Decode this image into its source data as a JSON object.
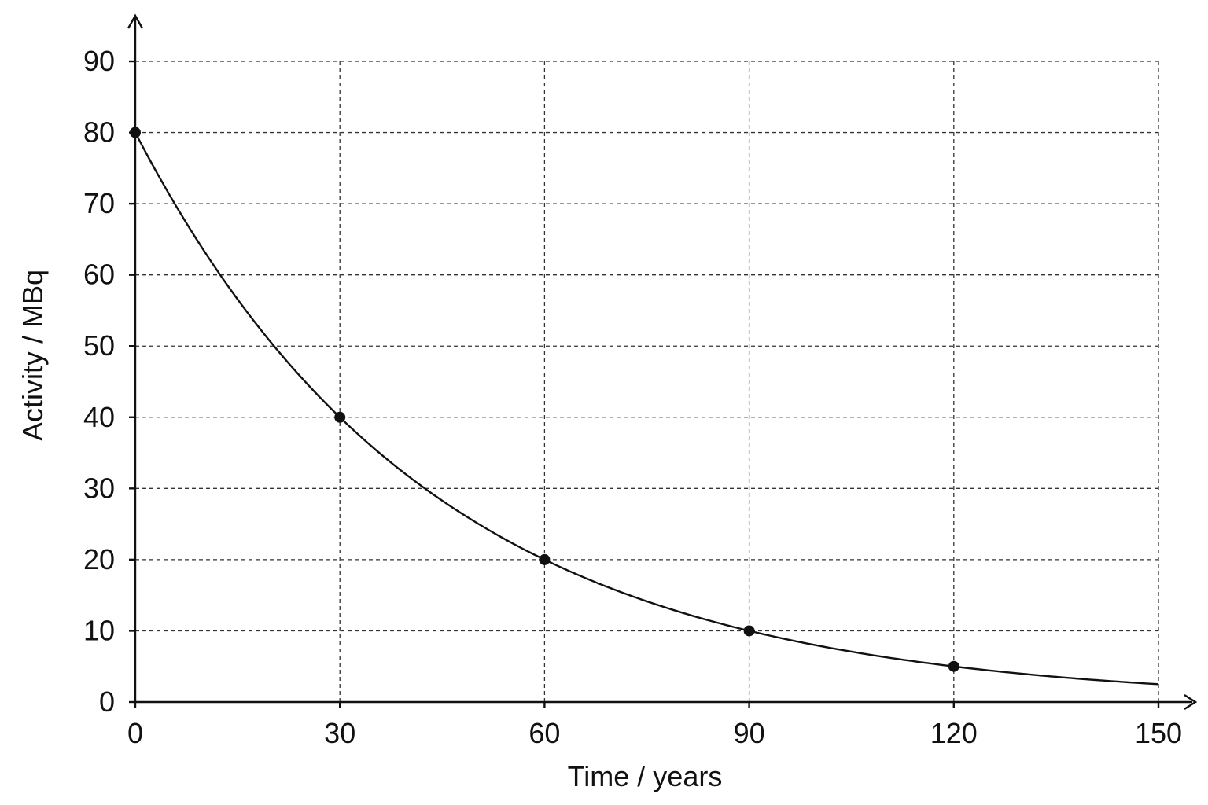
{
  "chart_data": {
    "type": "line",
    "title": "",
    "xlabel": "Time / years",
    "ylabel": "Activity / MBq",
    "xlim": [
      0,
      150
    ],
    "ylim": [
      0,
      90
    ],
    "x_ticks": [
      0,
      30,
      60,
      90,
      120,
      150
    ],
    "y_ticks": [
      0,
      10,
      20,
      30,
      40,
      50,
      60,
      70,
      80,
      90
    ],
    "grid": true,
    "grid_style": "dashed",
    "curve": {
      "type": "exponential-decay",
      "initial_value": 80,
      "half_life": 30,
      "x_range": [
        0,
        150
      ]
    },
    "series": [
      {
        "x": [
          0,
          30,
          60,
          90,
          120
        ],
        "y": [
          80,
          40,
          20,
          10,
          5
        ]
      }
    ],
    "colors": {
      "line": "#111111",
      "grid": "#333333",
      "background": "#ffffff"
    }
  }
}
